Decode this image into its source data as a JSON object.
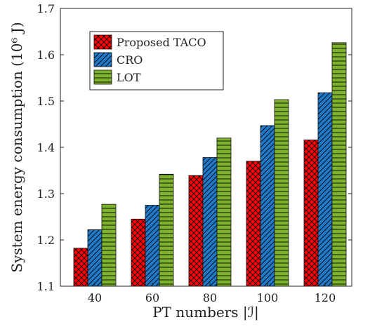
{
  "chart_data": {
    "type": "bar",
    "categories": [
      "40",
      "60",
      "80",
      "100",
      "120"
    ],
    "series": [
      {
        "name": "Proposed TACO",
        "values": [
          1.182,
          1.245,
          1.339,
          1.37,
          1.416
        ],
        "color": "#ff0000",
        "pattern": "crosshatch-icon"
      },
      {
        "name": "CRO",
        "values": [
          1.222,
          1.275,
          1.378,
          1.447,
          1.518
        ],
        "color": "#1f78c8",
        "pattern": "diagonal-hatch-icon"
      },
      {
        "name": "LOT",
        "values": [
          1.277,
          1.342,
          1.42,
          1.503,
          1.626
        ],
        "color": "#7db32e",
        "pattern": "horizontal-hatch-icon"
      }
    ],
    "xlabel": "PT numbers |ℐ|",
    "ylabel": "System energy consumption (10⁶ J)",
    "ylim": [
      1.1,
      1.7
    ],
    "yticks": [
      "1.1",
      "1.2",
      "1.3",
      "1.4",
      "1.5",
      "1.6",
      "1.7"
    ],
    "grid": false,
    "legend_position": "top-left"
  }
}
